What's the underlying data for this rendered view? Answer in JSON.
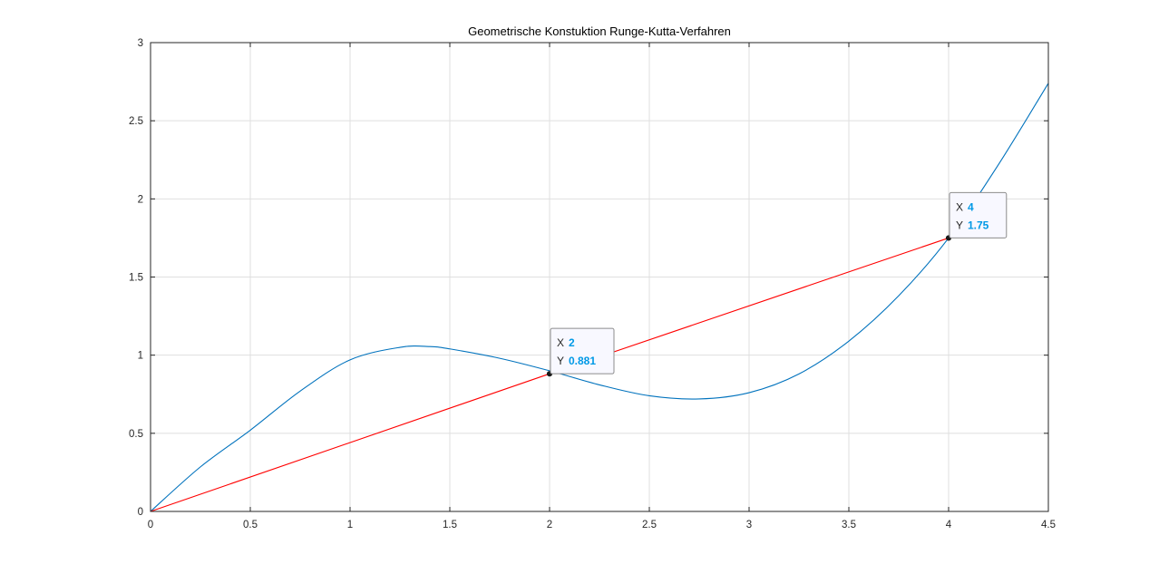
{
  "chart_data": {
    "type": "line",
    "title": "Geometrische Konstuktion Runge-Kutta-Verfahren",
    "xlabel": "",
    "ylabel": "",
    "xlim": [
      0,
      4.5
    ],
    "ylim": [
      0,
      3
    ],
    "xticks": [
      0,
      0.5,
      1,
      1.5,
      2,
      2.5,
      3,
      3.5,
      4,
      4.5
    ],
    "yticks": [
      0,
      0.5,
      1,
      1.5,
      2,
      2.5,
      3
    ],
    "xtick_labels": [
      "0",
      "0.5",
      "1",
      "1.5",
      "2",
      "2.5",
      "3",
      "3.5",
      "4",
      "4.5"
    ],
    "ytick_labels": [
      "0",
      "0.5",
      "1",
      "1.5",
      "2",
      "2.5",
      "3"
    ],
    "grid": true,
    "series": [
      {
        "color": "#0072bd",
        "x": [
          0,
          0.25,
          0.5,
          0.75,
          1,
          1.25,
          1.4,
          1.5,
          1.75,
          2,
          2.25,
          2.5,
          2.75,
          3,
          3.25,
          3.5,
          3.75,
          4,
          4.25,
          4.5
        ],
        "y": [
          0,
          0.285,
          0.52,
          0.77,
          0.97,
          1.05,
          1.055,
          1.04,
          0.98,
          0.9,
          0.81,
          0.74,
          0.72,
          0.76,
          0.88,
          1.09,
          1.38,
          1.75,
          2.22,
          2.74
        ]
      },
      {
        "color": "#ff0000",
        "x": [
          0,
          2,
          4
        ],
        "y": [
          0,
          0.881,
          1.75
        ]
      }
    ],
    "datatips": [
      {
        "x_key": "X",
        "x_value": "2",
        "y_key": "Y",
        "y_value": "0.881",
        "x": 2,
        "y": 0.881
      },
      {
        "x_key": "X",
        "x_value": "4",
        "y_key": "Y",
        "y_value": "1.75",
        "x": 4,
        "y": 1.75
      }
    ]
  }
}
